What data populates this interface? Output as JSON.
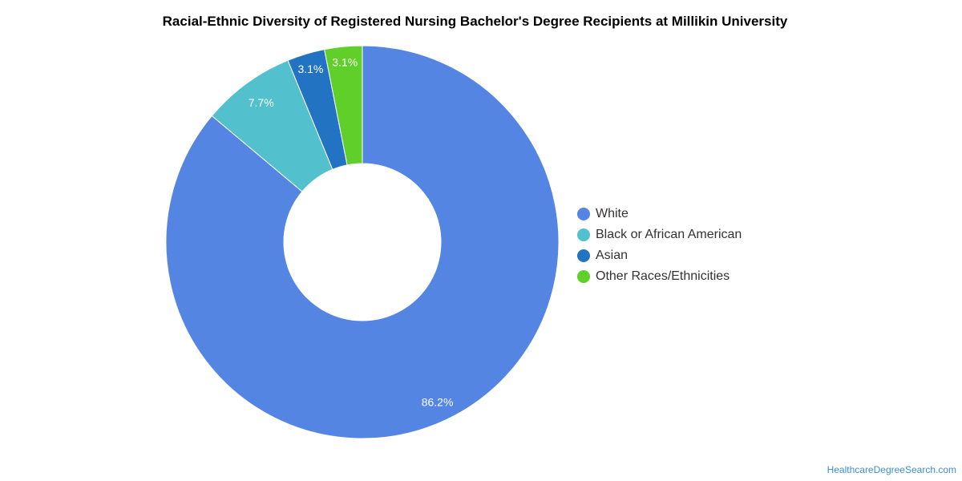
{
  "chart_data": {
    "type": "pie",
    "variant": "donut",
    "title": "Racial-Ethnic Diversity of Registered Nursing Bachelor's Degree Recipients at Millikin University",
    "categories": [
      "White",
      "Black or African American",
      "Asian",
      "Other Races/Ethnicities"
    ],
    "values": [
      86.2,
      7.7,
      3.1,
      3.1
    ],
    "value_labels": [
      "86.2%",
      "7.7%",
      "3.1%",
      "3.1%"
    ],
    "colors": [
      "#5485e3",
      "#52c1cd",
      "#2273c2",
      "#60cf2a"
    ],
    "legend_position": "right"
  },
  "source": "HealthcareDegreeSearch.com"
}
